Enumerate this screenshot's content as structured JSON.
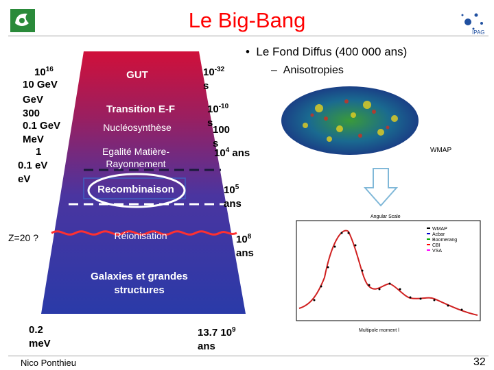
{
  "title": "Le Big-Bang",
  "bullet": "Le Fond Diffus (400 000 ans)",
  "sub_bullet": "Anisotropies",
  "left_labels": [
    {
      "base": "10",
      "sup": "16",
      "rest": "GeV"
    },
    {
      "base": "10",
      "sup": "",
      "rest": "GeV"
    },
    {
      "base": "300",
      "sup": "",
      "rest": "GeV"
    },
    {
      "base": "0.1",
      "sup": "",
      "rest": "MeV"
    },
    {
      "base": "1",
      "sup": "",
      "rest": "eV"
    },
    {
      "base": "0.1",
      "sup": "",
      "rest": "eV"
    }
  ],
  "left_z": "Z=20 ?",
  "left_bottom": "0.2 meV",
  "inside": {
    "gut": "GUT",
    "transition": "Transition E-F",
    "nucleo": "Nucléosynthèse",
    "egalite": "Egalité Matière-Rayonnement",
    "recombinaison": "Recombinaison",
    "reionisation": "Réionisation",
    "galaxies": "Galaxies et grandes structures"
  },
  "right_labels": {
    "t1_base": "10",
    "t1_sup": "-32",
    "t1_unit": "s",
    "t2_base": "10",
    "t2_sup": "-10",
    "t2_unit": "s",
    "t3": "100 s",
    "t4_base": "10",
    "t4_sup": "4",
    "t4_unit": "ans",
    "t5_base": "10",
    "t5_sup": "5",
    "t5_unit": "ans",
    "t6_base": "10",
    "t6_sup": "8",
    "t6_unit": "ans",
    "t7_base": "13.7 10",
    "t7_sup": "9",
    "t7_unit": "ans"
  },
  "wmap_label": "WMAP",
  "plot": {
    "top_label": "Angular Scale",
    "x_label": "Multipole moment l",
    "legend": [
      "WMAP",
      "Acbar",
      "Boomerang",
      "CBI",
      "VSA"
    ],
    "legend_colors": [
      "#000000",
      "#0000cc",
      "#00aa00",
      "#ff0000",
      "#ff00ff"
    ]
  },
  "footer": "Nico Ponthieu",
  "page_number": "32",
  "colors": {
    "title": "#ff0000",
    "cone_top": "#d0103a",
    "cone_bottom": "#2a3aa8"
  }
}
